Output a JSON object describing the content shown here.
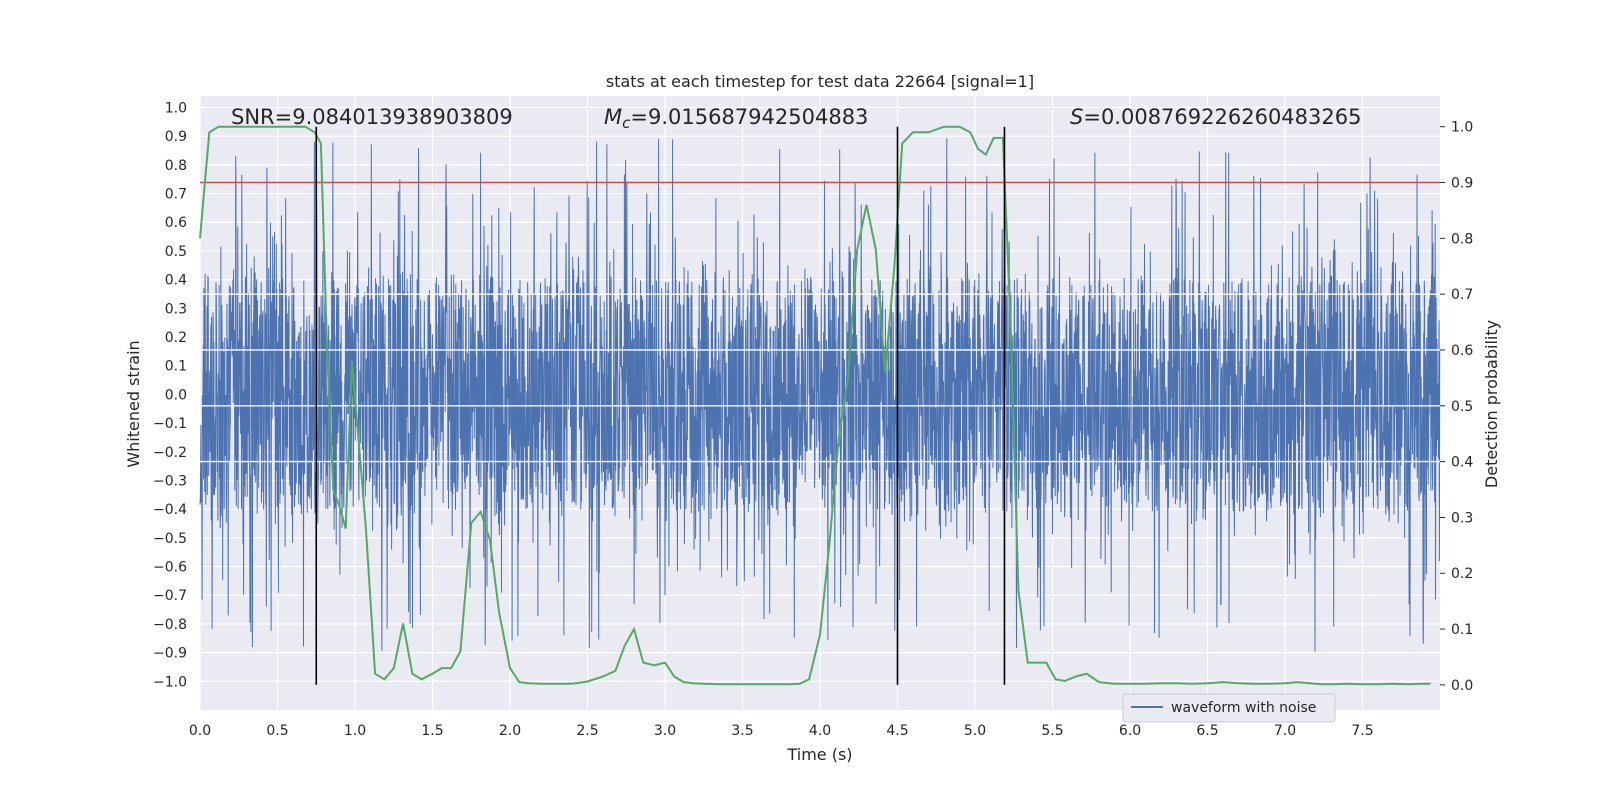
{
  "chart_data": {
    "type": "line",
    "title": "stats at each timestep for test data 22664 [signal=1]",
    "xlabel": "Time (s)",
    "ylabel": "Whitened strain",
    "ylabel_right": "Detection probability",
    "xlim": [
      0,
      8
    ],
    "ylim": [
      -1.1,
      1.04
    ],
    "ylim_right": [
      -0.045,
      1.055
    ],
    "x_ticks": [
      "0.0",
      "0.5",
      "1.0",
      "1.5",
      "2.0",
      "2.5",
      "3.0",
      "3.5",
      "4.0",
      "4.5",
      "5.0",
      "5.5",
      "6.0",
      "6.5",
      "7.0",
      "7.5"
    ],
    "y_ticks": [
      "1.0",
      "0.9",
      "0.8",
      "0.7",
      "0.6",
      "0.5",
      "0.4",
      "0.3",
      "0.2",
      "0.1",
      "0.0",
      "-0.1",
      "-0.2",
      "-0.3",
      "-0.4",
      "-0.5",
      "-0.6",
      "-0.7",
      "-0.8",
      "-0.9",
      "-1.0"
    ],
    "y_ticks_right": [
      "1.0",
      "0.9",
      "0.8",
      "0.7",
      "0.6",
      "0.5",
      "0.4",
      "0.3",
      "0.2",
      "0.1",
      "0.0"
    ],
    "annotations": {
      "snr": "SNR=9.084013938903809",
      "mc_symbol": "M",
      "mc_sub": "c",
      "mc_value": "=9.015687942504883",
      "s_symbol": "S",
      "s_value": "=0.008769226260483265"
    },
    "legend": {
      "label": "waveform with noise",
      "location": "lower-right"
    },
    "threshold": {
      "value": 0.9,
      "axis": "right",
      "color": "#c44e52"
    },
    "vertical_markers": [
      0.75,
      4.5,
      5.19
    ],
    "waveform": {
      "name": "waveform with noise",
      "color": "#4c72b0",
      "samples": 4096,
      "core_amplitude": 0.4,
      "max_positive": 0.94,
      "max_negative": -0.99
    },
    "probability": {
      "name": "detection probability",
      "color": "#55a868",
      "x": [
        0.0,
        0.06,
        0.12,
        0.2,
        0.3,
        0.4,
        0.5,
        0.6,
        0.68,
        0.74,
        0.78,
        0.82,
        0.86,
        0.9,
        0.94,
        0.98,
        1.02,
        1.07,
        1.13,
        1.19,
        1.25,
        1.31,
        1.37,
        1.43,
        1.5,
        1.56,
        1.62,
        1.68,
        1.75,
        1.81,
        1.87,
        1.93,
        2.0,
        2.06,
        2.12,
        2.2,
        2.3,
        2.4,
        2.5,
        2.6,
        2.68,
        2.74,
        2.8,
        2.86,
        2.93,
        3.0,
        3.06,
        3.12,
        3.18,
        3.25,
        3.35,
        3.5,
        3.65,
        3.8,
        3.87,
        3.93,
        4.0,
        4.06,
        4.12,
        4.18,
        4.24,
        4.3,
        4.36,
        4.42,
        4.48,
        4.53,
        4.6,
        4.7,
        4.8,
        4.9,
        4.97,
        5.02,
        5.07,
        5.12,
        5.18,
        5.23,
        5.28,
        5.34,
        5.4,
        5.46,
        5.52,
        5.58,
        5.65,
        5.72,
        5.8,
        5.9,
        6.0,
        6.1,
        6.2,
        6.3,
        6.4,
        6.5,
        6.6,
        6.7,
        6.8,
        6.9,
        7.0,
        7.08,
        7.16,
        7.24,
        7.32,
        7.4,
        7.5,
        7.6,
        7.7,
        7.8,
        7.88,
        7.94
      ],
      "y": [
        0.8,
        0.99,
        1.0,
        1.0,
        1.0,
        1.0,
        1.0,
        1.0,
        1.0,
        0.99,
        0.97,
        0.6,
        0.35,
        0.32,
        0.28,
        0.58,
        0.45,
        0.28,
        0.02,
        0.01,
        0.03,
        0.11,
        0.02,
        0.01,
        0.02,
        0.03,
        0.03,
        0.06,
        0.29,
        0.31,
        0.26,
        0.13,
        0.03,
        0.005,
        0.003,
        0.002,
        0.002,
        0.002,
        0.006,
        0.015,
        0.025,
        0.07,
        0.1,
        0.04,
        0.035,
        0.04,
        0.015,
        0.005,
        0.003,
        0.002,
        0.001,
        0.001,
        0.001,
        0.001,
        0.002,
        0.01,
        0.09,
        0.25,
        0.44,
        0.55,
        0.78,
        0.86,
        0.78,
        0.56,
        0.75,
        0.97,
        0.99,
        0.99,
        1.0,
        1.0,
        0.99,
        0.96,
        0.95,
        0.98,
        0.98,
        0.64,
        0.17,
        0.04,
        0.04,
        0.04,
        0.01,
        0.007,
        0.015,
        0.02,
        0.005,
        0.002,
        0.002,
        0.002,
        0.003,
        0.003,
        0.002,
        0.003,
        0.005,
        0.003,
        0.002,
        0.002,
        0.003,
        0.005,
        0.003,
        0.001,
        0.001,
        0.002,
        0.001,
        0.001,
        0.002,
        0.001,
        0.002,
        0.002
      ]
    }
  }
}
